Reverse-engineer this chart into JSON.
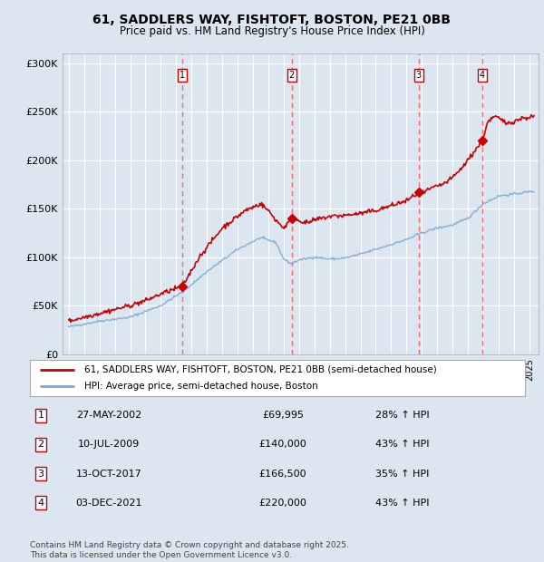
{
  "title": "61, SADDLERS WAY, FISHTOFT, BOSTON, PE21 0BB",
  "subtitle": "Price paid vs. HM Land Registry's House Price Index (HPI)",
  "background_color": "#dce6f0",
  "plot_bg_color": "#dce6f0",
  "ylim": [
    0,
    310000
  ],
  "yticks": [
    0,
    50000,
    100000,
    150000,
    200000,
    250000,
    300000
  ],
  "ytick_labels": [
    "£0",
    "£50K",
    "£100K",
    "£150K",
    "£200K",
    "£250K",
    "£300K"
  ],
  "sale_dates": [
    2002.41,
    2009.53,
    2017.79,
    2021.92
  ],
  "sale_prices": [
    69995,
    140000,
    166500,
    220000
  ],
  "sale_labels": [
    "1",
    "2",
    "3",
    "4"
  ],
  "sale_info": [
    {
      "num": "1",
      "date": "27-MAY-2002",
      "price": "£69,995",
      "pct": "28% ↑ HPI"
    },
    {
      "num": "2",
      "date": "10-JUL-2009",
      "price": "£140,000",
      "pct": "43% ↑ HPI"
    },
    {
      "num": "3",
      "date": "13-OCT-2017",
      "price": "£166,500",
      "pct": "35% ↑ HPI"
    },
    {
      "num": "4",
      "date": "03-DEC-2021",
      "price": "£220,000",
      "pct": "43% ↑ HPI"
    }
  ],
  "legend_label_red": "61, SADDLERS WAY, FISHTOFT, BOSTON, PE21 0BB (semi-detached house)",
  "legend_label_blue": "HPI: Average price, semi-detached house, Boston",
  "footer": "Contains HM Land Registry data © Crown copyright and database right 2025.\nThis data is licensed under the Open Government Licence v3.0.",
  "red_color": "#cc0000",
  "blue_color": "#7aaad0",
  "dashed_color": "#ff6666",
  "grid_color": "#ffffff"
}
